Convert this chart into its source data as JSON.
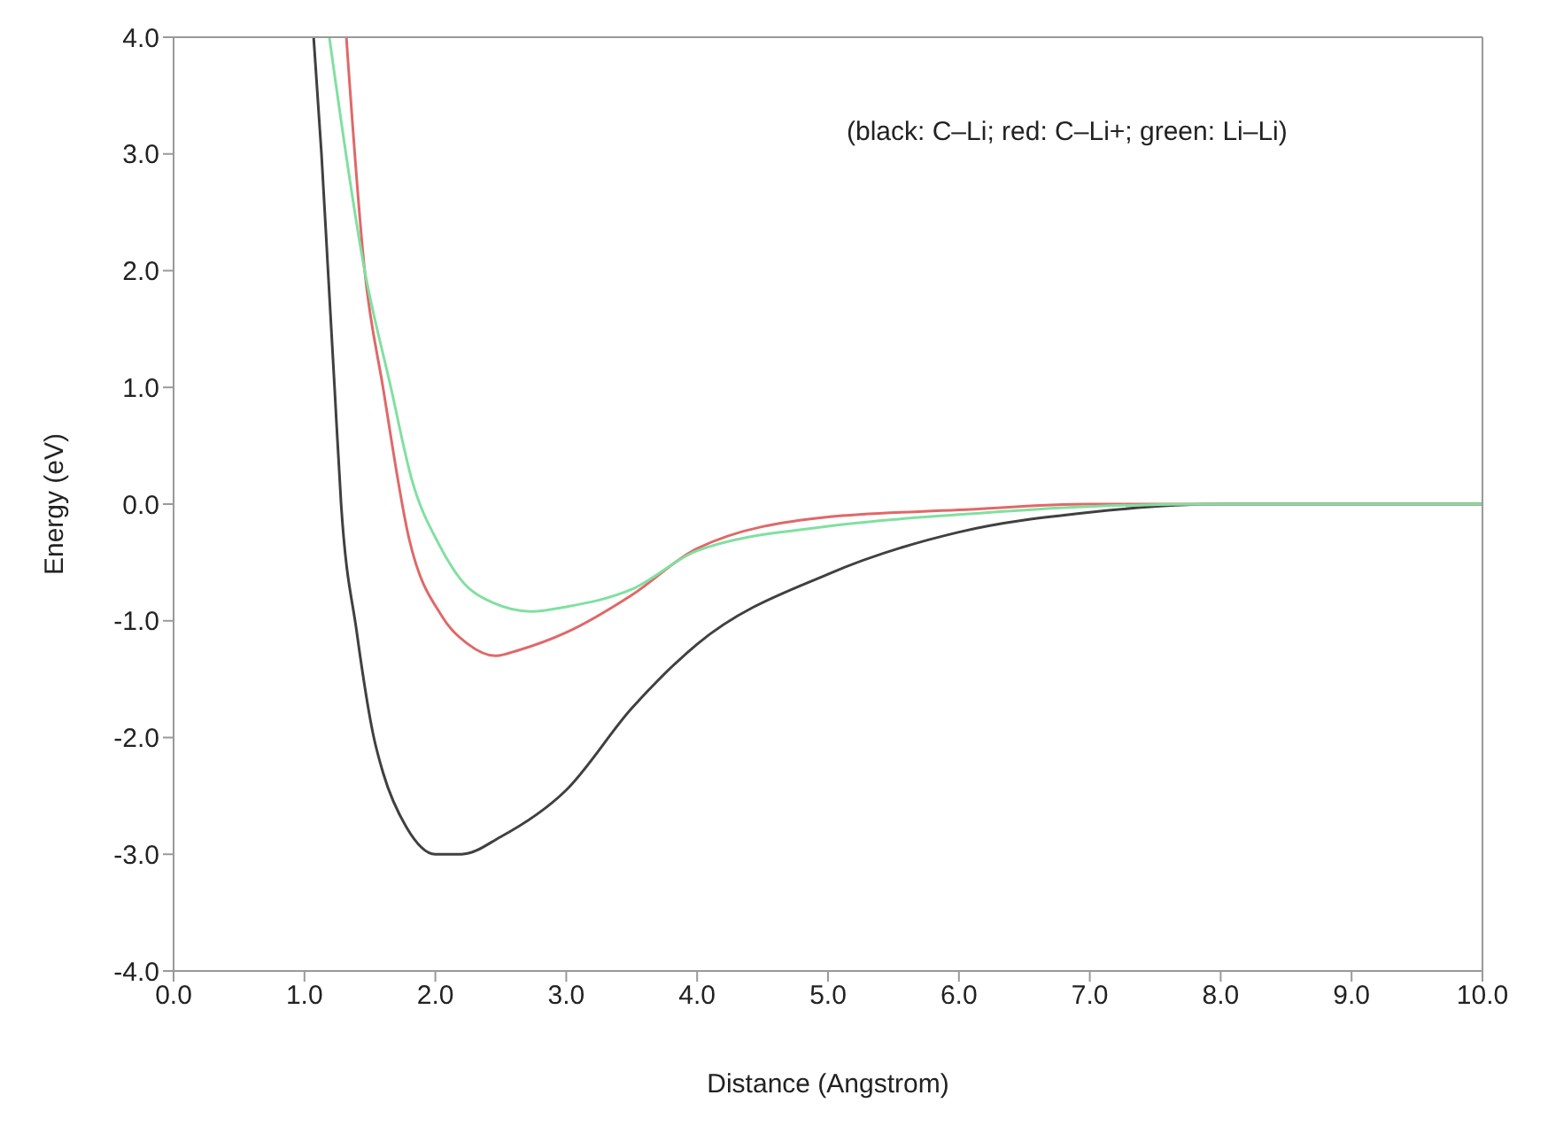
{
  "chart_data": {
    "type": "line",
    "xlabel": "Distance (Angstrom)",
    "ylabel": "Energy (eV)",
    "annotations": [
      "(black: C–Li; red: C–Li+; green: Li–Li)"
    ],
    "xlim": [
      0,
      10
    ],
    "ylim": [
      -4,
      4
    ],
    "xticks": [
      {
        "value": 0,
        "label": "0.0"
      },
      {
        "value": 1,
        "label": "1.0"
      },
      {
        "value": 2,
        "label": "2.0"
      },
      {
        "value": 3,
        "label": "3.0"
      },
      {
        "value": 4,
        "label": "4.0"
      },
      {
        "value": 5,
        "label": "5.0"
      },
      {
        "value": 6,
        "label": "6.0"
      },
      {
        "value": 7,
        "label": "7.0"
      },
      {
        "value": 8,
        "label": "8.0"
      },
      {
        "value": 9,
        "label": "9.0"
      },
      {
        "value": 10,
        "label": "10.0"
      }
    ],
    "yticks": [
      {
        "value": -4,
        "label": "-4.0"
      },
      {
        "value": -3,
        "label": "-3.0"
      },
      {
        "value": -2,
        "label": "-2.0"
      },
      {
        "value": -1,
        "label": "-1.0"
      },
      {
        "value": 0,
        "label": "0.0"
      },
      {
        "value": 1,
        "label": "1.0"
      },
      {
        "value": 2,
        "label": "2.0"
      },
      {
        "value": 3,
        "label": "3.0"
      },
      {
        "value": 4,
        "label": "4.0"
      }
    ],
    "legend": false,
    "marker": "none",
    "line_style": "solid",
    "series": [
      {
        "color": "#404040",
        "x": [
          1.07,
          1.13,
          1.18,
          1.23,
          1.28,
          1.4,
          1.53,
          1.6,
          1.78,
          2.0,
          2.2,
          2.5,
          3.0,
          3.5,
          4.0,
          5.0,
          6.0,
          7.0,
          8.0,
          9.0,
          10.0
        ],
        "values": [
          4,
          3,
          2,
          1,
          0,
          -1.1,
          -2.0,
          -2.3,
          -2.77,
          -3.0,
          -3.0,
          -2.85,
          -2.45,
          -1.75,
          -1.2,
          -0.6,
          -0.24,
          -0.07,
          0,
          0,
          0
        ]
      },
      {
        "color": "#e06868",
        "x": [
          1.32,
          1.46,
          1.6,
          1.8,
          2.05,
          2.25,
          2.46,
          2.64,
          3.0,
          3.5,
          4.0,
          5.0,
          6.0,
          7.0,
          8.0,
          9.0,
          10.0
        ],
        "values": [
          4,
          2,
          1,
          -0.3,
          -0.96,
          -1.2,
          -1.3,
          -1.25,
          -1.1,
          -0.78,
          -0.38,
          -0.11,
          -0.05,
          0,
          0,
          0,
          0
        ]
      },
      {
        "color": "#80e0a0",
        "x": [
          1.19,
          1.46,
          1.66,
          1.82,
          2.03,
          2.19,
          2.45,
          2.73,
          3.0,
          3.5,
          4.0,
          5.0,
          6.0,
          7.0,
          8.0,
          9.0,
          10.0
        ],
        "values": [
          4,
          2,
          1,
          0.21,
          -0.35,
          -0.64,
          -0.85,
          -0.92,
          -0.88,
          -0.73,
          -0.4,
          -0.19,
          -0.09,
          -0.02,
          0,
          0,
          0
        ]
      }
    ]
  }
}
